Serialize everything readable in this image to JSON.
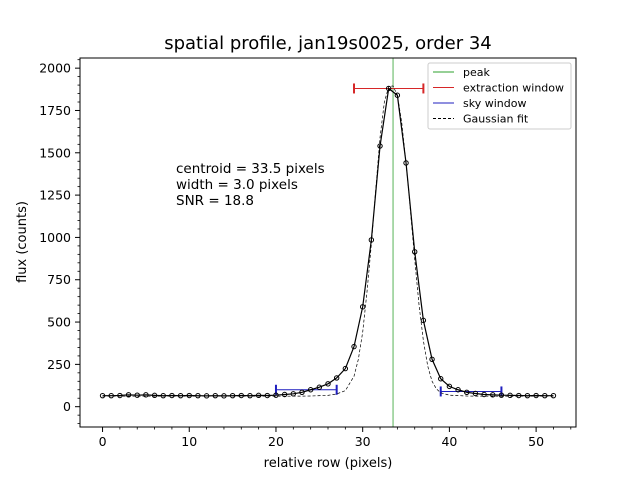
{
  "chart_data": {
    "type": "line",
    "title": "spatial profile, jan19s0025, order 34",
    "xlabel": "relative row (pixels)",
    "ylabel": "flux (counts)",
    "xlim": [
      -2.6,
      54.6
    ],
    "ylim": [
      -120,
      2060
    ],
    "x_ticks": [
      0,
      10,
      20,
      30,
      40,
      50
    ],
    "y_ticks": [
      0,
      250,
      500,
      750,
      1000,
      1250,
      1500,
      1750,
      2000
    ],
    "legend_position": "top-right",
    "grid": false,
    "annotations": [
      "centroid = 33.5 pixels",
      "width = 3.0 pixels",
      "SNR = 18.8"
    ],
    "colors": {
      "profile": "#000000",
      "peak": "#2ca02c",
      "extraction": "#d62728",
      "sky": "#1f1fbf",
      "fit": "#000000"
    },
    "legend": [
      {
        "key": "peak",
        "label": "peak",
        "style": "peak"
      },
      {
        "key": "extraction",
        "label": "extraction window",
        "style": "extraction"
      },
      {
        "key": "sky",
        "label": "sky window",
        "style": "sky"
      },
      {
        "key": "fit",
        "label": "Gaussian fit",
        "style": "fit"
      }
    ],
    "series": [
      {
        "name": "profile",
        "x": [
          0,
          1,
          2,
          3,
          4,
          5,
          6,
          7,
          8,
          9,
          10,
          11,
          12,
          13,
          14,
          15,
          16,
          17,
          18,
          19,
          20,
          21,
          22,
          23,
          24,
          25,
          26,
          27,
          28,
          29,
          30,
          31,
          32,
          33,
          34,
          35,
          36,
          37,
          38,
          39,
          40,
          41,
          42,
          43,
          44,
          45,
          46,
          47,
          48,
          49,
          50,
          51,
          52
        ],
        "y": [
          65,
          65,
          66,
          70,
          68,
          70,
          67,
          65,
          66,
          65,
          66,
          65,
          64,
          65,
          64,
          65,
          66,
          65,
          67,
          66,
          68,
          72,
          76,
          85,
          100,
          115,
          135,
          170,
          225,
          355,
          590,
          985,
          1540,
          1880,
          1840,
          1440,
          915,
          510,
          280,
          165,
          120,
          100,
          85,
          78,
          72,
          70,
          68,
          67,
          66,
          65,
          66,
          65,
          65
        ]
      },
      {
        "name": "Gaussian fit",
        "x": [
          0,
          5,
          10,
          15,
          18,
          20,
          22,
          24,
          26,
          27,
          28,
          29,
          29.5,
          30,
          30.5,
          31,
          31.5,
          32,
          32.5,
          33,
          33.5,
          34,
          34.5,
          35,
          35.5,
          36,
          36.5,
          37,
          37.5,
          38,
          38.5,
          39,
          40,
          42,
          44,
          46,
          48,
          50,
          52
        ],
        "y": [
          62,
          62,
          62,
          62,
          62,
          62,
          62,
          63,
          67,
          75,
          95,
          180,
          280,
          440,
          680,
          960,
          1280,
          1590,
          1800,
          1890,
          1895,
          1840,
          1680,
          1440,
          1160,
          870,
          600,
          390,
          240,
          150,
          105,
          82,
          68,
          63,
          62,
          62,
          62,
          62,
          62
        ]
      }
    ],
    "peak_x": 33.5,
    "extraction_window": {
      "x": [
        29,
        37
      ],
      "y": 1880
    },
    "sky_windows": [
      {
        "x": [
          20,
          27
        ],
        "y": 100
      },
      {
        "x": [
          39,
          46
        ],
        "y": 90
      }
    ]
  }
}
